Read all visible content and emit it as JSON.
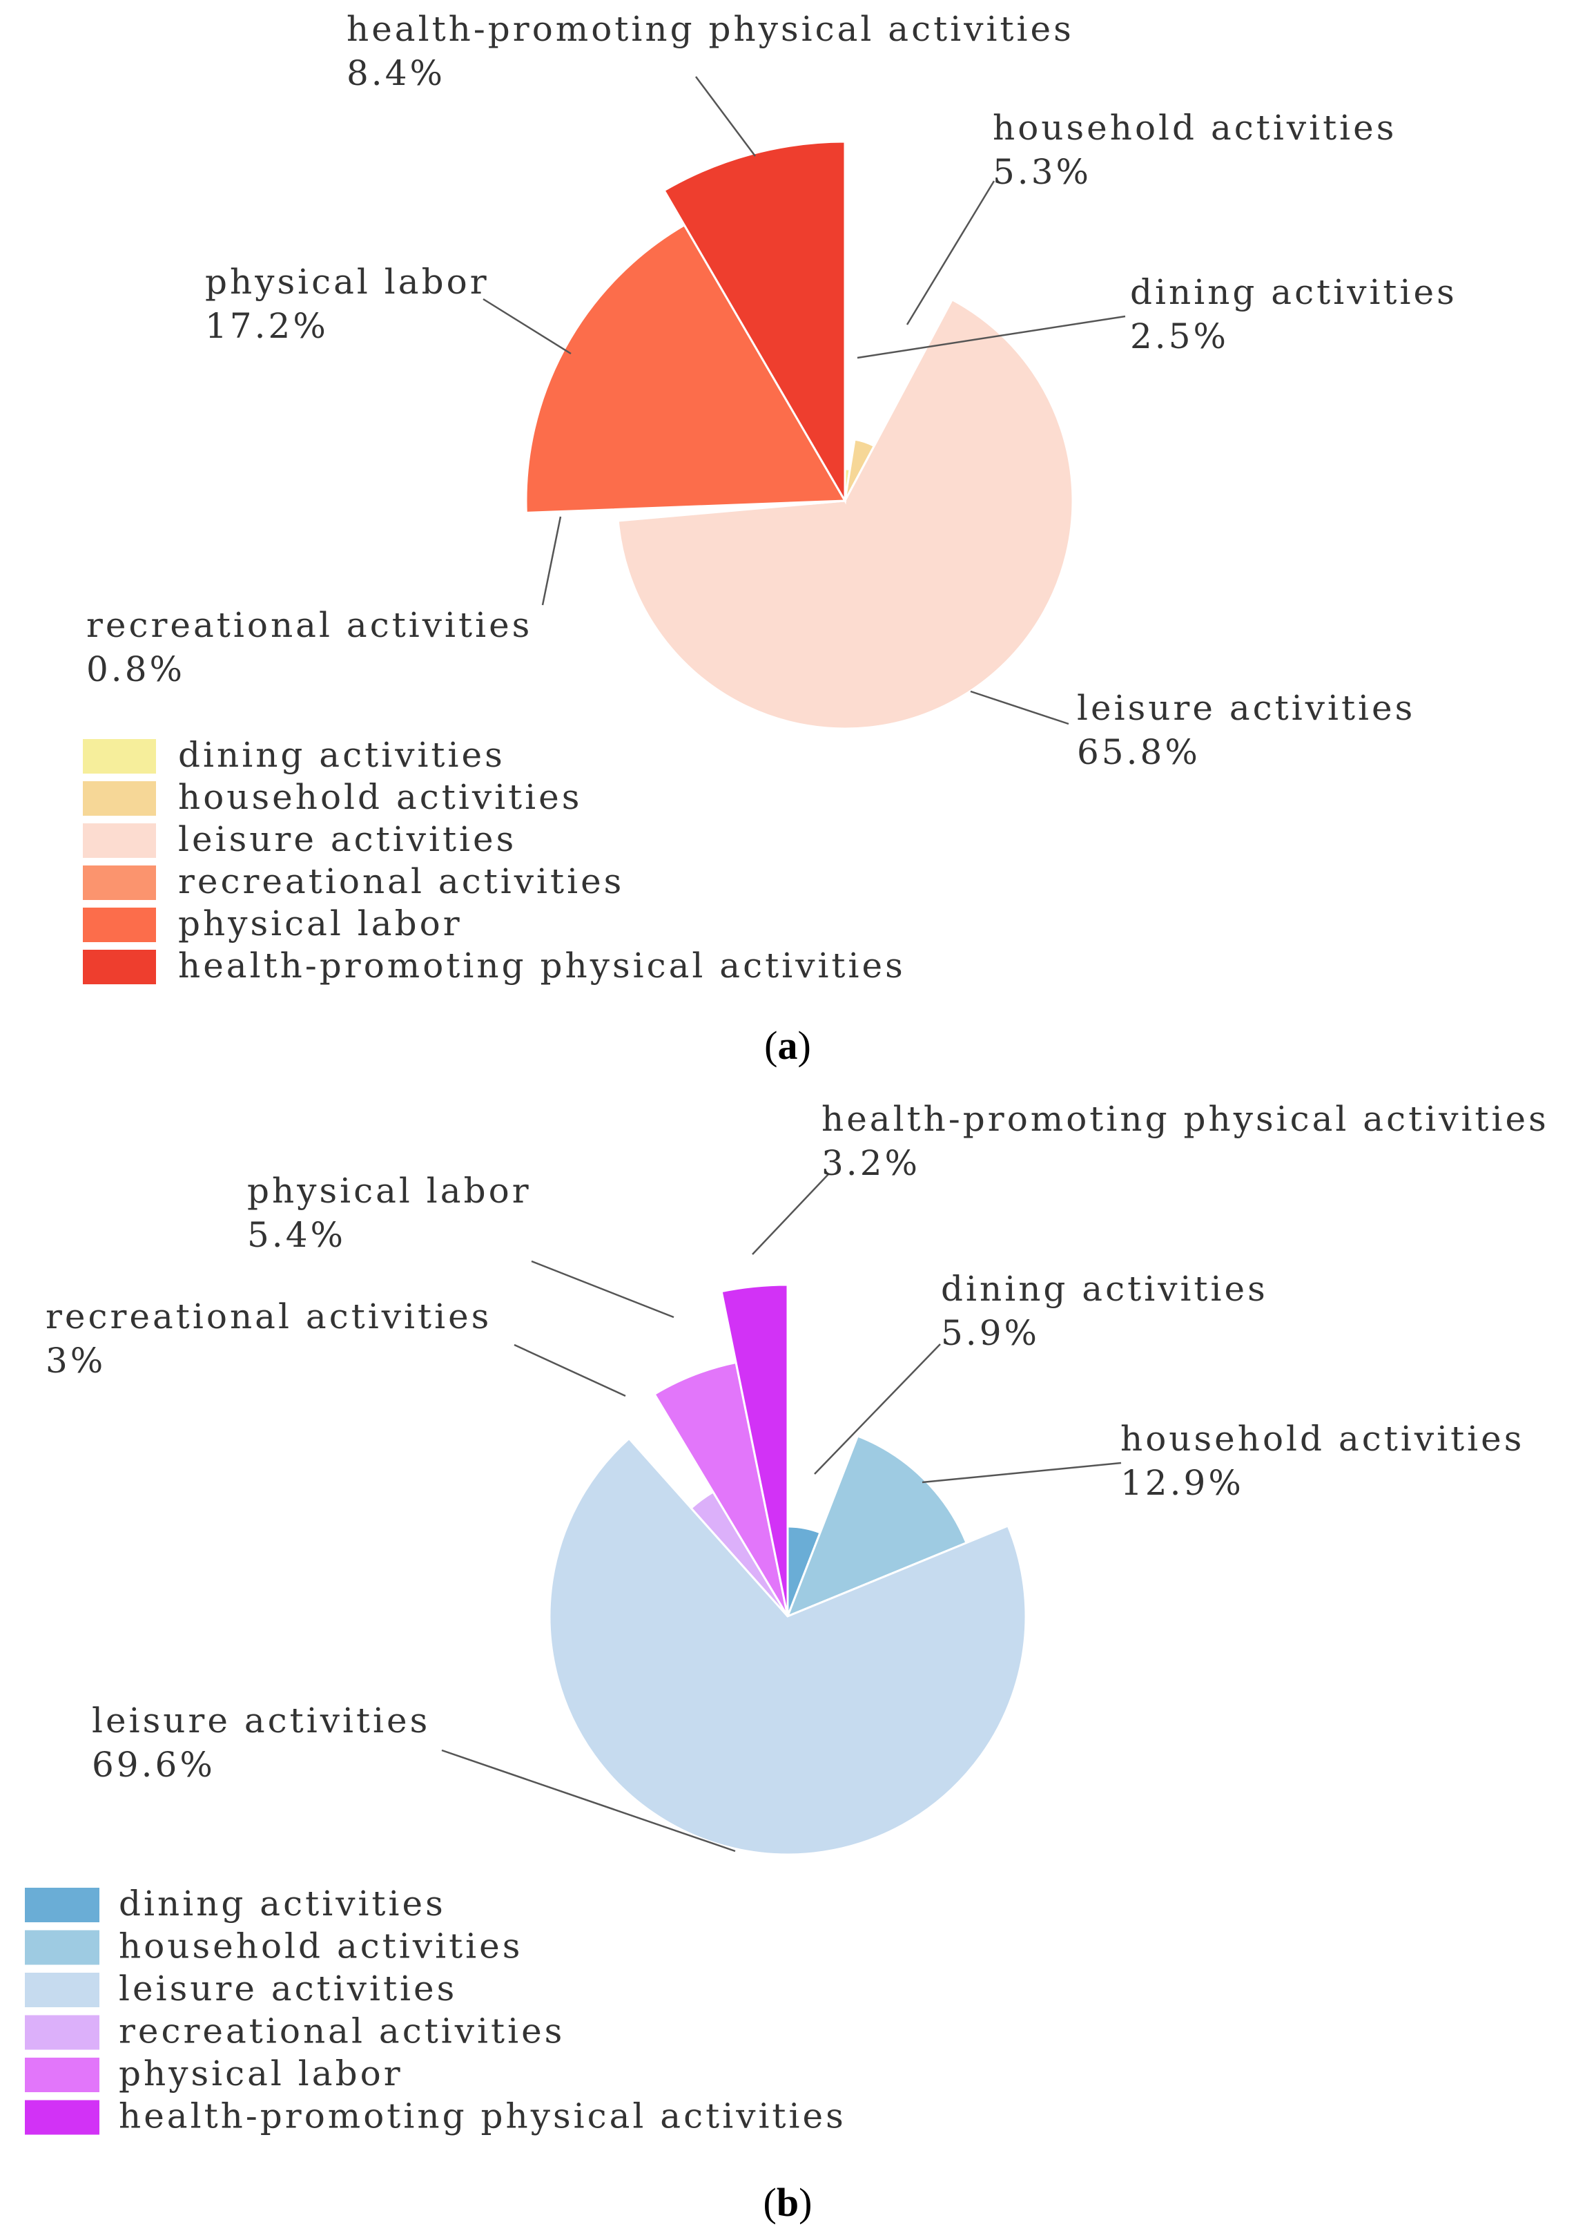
{
  "chart_data": [
    {
      "type": "pie",
      "panel_label": "a",
      "categories": [
        "dining activities",
        "household activities",
        "leisure activities",
        "recreational activities",
        "physical labor",
        "health-promoting physical activities"
      ],
      "values": [
        2.5,
        5.3,
        65.8,
        0.8,
        17.2,
        8.4
      ],
      "value_labels": [
        "2.5%",
        "5.3%",
        "65.8%",
        "0.8%",
        "17.2%",
        "8.4%"
      ],
      "colors": [
        "#f6ee9b",
        "#f6d797",
        "#fcdcd0",
        "#fb946e",
        "#fc6d4b",
        "#ee3e2e"
      ],
      "rose": true,
      "legend_placement": "bottom-left"
    },
    {
      "type": "pie",
      "panel_label": "b",
      "categories": [
        "dining activities",
        "household activities",
        "leisure activities",
        "recreational activities",
        "physical labor",
        "health-promoting physical activities"
      ],
      "values": [
        5.9,
        12.9,
        69.6,
        3,
        5.4,
        3.2
      ],
      "value_labels": [
        "5.9%",
        "12.9%",
        "69.6%",
        "3%",
        "5.4%",
        "3.2%"
      ],
      "colors": [
        "#6aadd6",
        "#9ecbe2",
        "#c6dbef",
        "#dcb0fa",
        "#e276fa",
        "#d232f6"
      ],
      "rose": true,
      "legend_placement": "bottom-left"
    }
  ]
}
